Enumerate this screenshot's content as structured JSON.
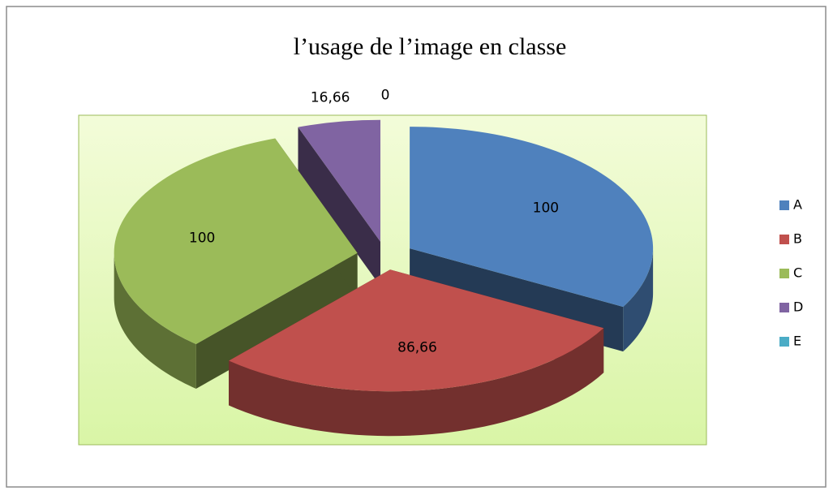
{
  "chart_data": {
    "type": "pie",
    "title": "l’usage de l’image en classe",
    "categories": [
      "A",
      "B",
      "C",
      "D",
      "E"
    ],
    "values": [
      100,
      86.66,
      100,
      16.66,
      0
    ],
    "value_labels": [
      "100",
      "86,66",
      "100",
      "16,66",
      "0"
    ],
    "colors": [
      "#4f81bd",
      "#c0504d",
      "#9bbb59",
      "#8064a2",
      "#4bacc6"
    ],
    "legend": "right"
  }
}
